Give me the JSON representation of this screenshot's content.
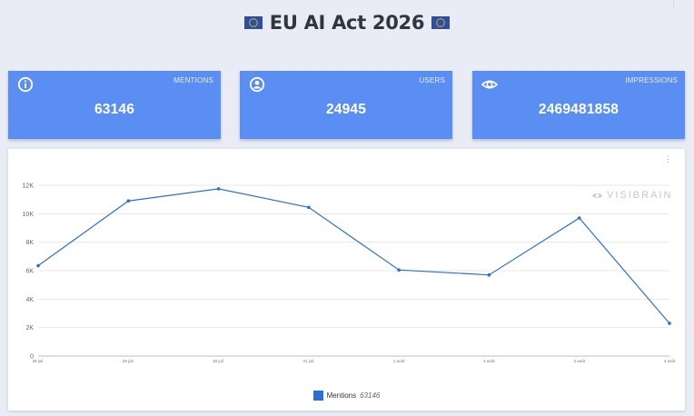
{
  "page": {
    "title": "EU AI Act 2026",
    "flag_icon": "eu-flag-icon"
  },
  "cards": [
    {
      "label": "MENTIONS",
      "value": "63146",
      "icon": "info-icon"
    },
    {
      "label": "USERS",
      "value": "24945",
      "icon": "user-icon"
    },
    {
      "label": "IMPRESSIONS",
      "value": "2469481858",
      "icon": "eye-icon"
    }
  ],
  "colors": {
    "background": "#e9ecf4",
    "card": "#5b8ef2",
    "series": "#2a70d6",
    "flag_blue": "#2c4fa3",
    "flag_stars": "#ffcc00"
  },
  "watermark": {
    "text": "VISIBRAIN",
    "icon": "eye-icon"
  },
  "chart_data": {
    "type": "line",
    "categories": [
      "28 juil.",
      "29 juil.",
      "30 juil.",
      "31 juil.",
      "1 août",
      "2 août",
      "3 août",
      "4 août"
    ],
    "series": [
      {
        "name": "Mentions",
        "values": [
          6350,
          10900,
          11750,
          10450,
          6050,
          5700,
          9700,
          2300
        ]
      }
    ],
    "y_ticks": [
      "0",
      "2K",
      "4K",
      "6K",
      "8K",
      "10K",
      "12K"
    ],
    "ylim": [
      0,
      12000
    ],
    "grid": true,
    "legend": {
      "position": "bottom",
      "label": "Mentions",
      "count": "63146"
    }
  }
}
